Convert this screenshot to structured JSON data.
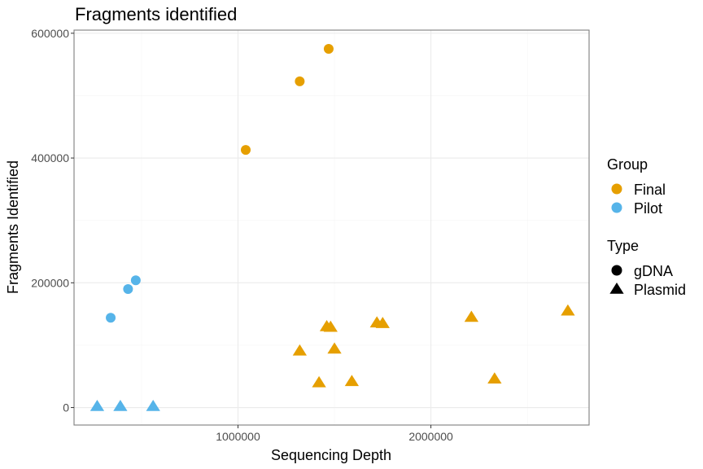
{
  "chart_data": {
    "type": "scatter",
    "title": "Fragments identified",
    "xlabel": "Sequencing Depth",
    "ylabel": "Fragments Identified",
    "xlim": [
      150000,
      2820000
    ],
    "ylim": [
      -28000,
      605000
    ],
    "x_ticks": [
      1000000,
      2000000
    ],
    "x_tick_labels": [
      "1000000",
      "2000000"
    ],
    "x_minor": [
      500000,
      1500000,
      2500000
    ],
    "y_ticks": [
      0,
      200000,
      400000,
      600000
    ],
    "y_tick_labels": [
      "0",
      "200000",
      "400000",
      "600000"
    ],
    "y_minor": [
      100000,
      300000,
      500000
    ],
    "grid": true,
    "legend_placement": "right",
    "colors": {
      "Final": "#E69F00",
      "Pilot": "#56B4E9",
      "legend_shape": "#000000"
    },
    "legends": [
      {
        "title": "Group",
        "entries": [
          {
            "label": "Final",
            "shape": "circle",
            "color": "#E69F00"
          },
          {
            "label": "Pilot",
            "shape": "circle",
            "color": "#56B4E9"
          }
        ]
      },
      {
        "title": "Type",
        "entries": [
          {
            "label": "gDNA",
            "shape": "circle",
            "color": "#000000"
          },
          {
            "label": "Plasmid",
            "shape": "triangle",
            "color": "#000000"
          }
        ]
      }
    ],
    "series": [
      {
        "group": "Final",
        "type": "gDNA",
        "points": [
          {
            "x": 1040000,
            "y": 413000
          },
          {
            "x": 1320000,
            "y": 523000
          },
          {
            "x": 1470000,
            "y": 575000
          }
        ]
      },
      {
        "group": "Final",
        "type": "Plasmid",
        "points": [
          {
            "x": 1320000,
            "y": 91000
          },
          {
            "x": 1420000,
            "y": 40000
          },
          {
            "x": 1460000,
            "y": 130000
          },
          {
            "x": 1480000,
            "y": 129000
          },
          {
            "x": 1500000,
            "y": 94000
          },
          {
            "x": 1590000,
            "y": 42000
          },
          {
            "x": 1720000,
            "y": 136000
          },
          {
            "x": 1750000,
            "y": 135000
          },
          {
            "x": 2210000,
            "y": 145000
          },
          {
            "x": 2330000,
            "y": 46000
          },
          {
            "x": 2710000,
            "y": 155000
          }
        ]
      },
      {
        "group": "Pilot",
        "type": "gDNA",
        "points": [
          {
            "x": 340000,
            "y": 144000
          },
          {
            "x": 430000,
            "y": 190000
          },
          {
            "x": 470000,
            "y": 204000
          }
        ]
      },
      {
        "group": "Pilot",
        "type": "Plasmid",
        "points": [
          {
            "x": 270000,
            "y": 2000
          },
          {
            "x": 390000,
            "y": 2000
          },
          {
            "x": 560000,
            "y": 2000
          }
        ]
      }
    ]
  }
}
